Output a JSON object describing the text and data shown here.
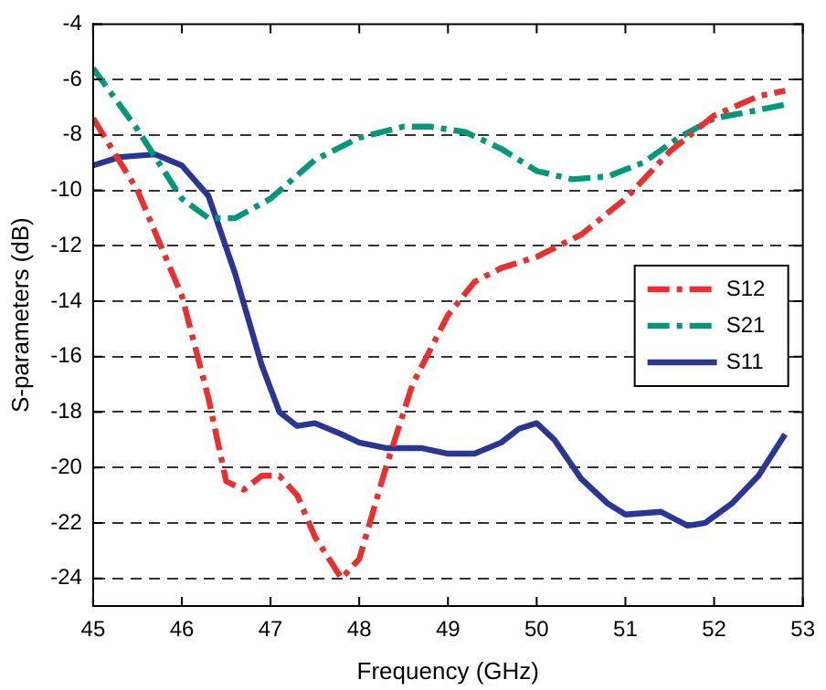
{
  "chart_data": {
    "type": "line",
    "xlabel": "Frequency (GHz)",
    "ylabel": "S-parameters (dB)",
    "xlim": [
      45,
      53
    ],
    "xticks": [
      45,
      46,
      47,
      48,
      49,
      50,
      51,
      52,
      53
    ],
    "ylim": [
      -25,
      -4
    ],
    "yticks": [
      -24,
      -22,
      -20,
      -18,
      -16,
      -14,
      -12,
      -10,
      -8,
      -6,
      -4
    ],
    "grid": "y",
    "legend": "right",
    "marker": "none",
    "series": [
      {
        "name": "S12",
        "color": "#e8302f",
        "line_style": "dashed",
        "x": [
          45,
          45.5,
          46,
          46.3,
          46.5,
          46.7,
          46.9,
          47.1,
          47.3,
          47.5,
          47.8,
          48,
          48.3,
          48.6,
          49,
          49.3,
          49.6,
          50,
          50.5,
          51,
          51.5,
          52,
          52.5,
          52.8
        ],
        "values": [
          -7.4,
          -10,
          -13.8,
          -17.5,
          -20.5,
          -20.8,
          -20.3,
          -20.3,
          -21,
          -22.5,
          -24,
          -23.3,
          -20,
          -17,
          -14.5,
          -13.3,
          -12.8,
          -12.4,
          -11.6,
          -10.3,
          -8.6,
          -7.3,
          -6.6,
          -6.4
        ]
      },
      {
        "name": "S21",
        "color": "#05977a",
        "line_style": "dashed",
        "x": [
          45,
          45.5,
          46,
          46.3,
          46.6,
          47,
          47.5,
          48,
          48.5,
          48.8,
          49.2,
          49.6,
          50,
          50.4,
          50.8,
          51.2,
          51.6,
          52,
          52.5,
          52.8
        ],
        "values": [
          -5.6,
          -7.8,
          -10.3,
          -11,
          -11,
          -10.3,
          -8.9,
          -8.1,
          -7.7,
          -7.7,
          -7.9,
          -8.5,
          -9.3,
          -9.6,
          -9.5,
          -9,
          -8.1,
          -7.4,
          -7.1,
          -6.9
        ]
      },
      {
        "name": "S11",
        "color": "#2b3592",
        "line_style": "solid",
        "x": [
          45,
          45.3,
          45.7,
          46,
          46.3,
          46.6,
          46.9,
          47.1,
          47.3,
          47.5,
          47.8,
          48,
          48.3,
          48.7,
          49,
          49.3,
          49.6,
          49.8,
          50,
          50.2,
          50.5,
          50.8,
          51,
          51.4,
          51.7,
          51.9,
          52.2,
          52.5,
          52.8
        ],
        "values": [
          -9.1,
          -8.8,
          -8.7,
          -9.1,
          -10.2,
          -13,
          -16.3,
          -18,
          -18.5,
          -18.4,
          -18.8,
          -19.1,
          -19.3,
          -19.3,
          -19.5,
          -19.5,
          -19.1,
          -18.6,
          -18.4,
          -19,
          -20.4,
          -21.3,
          -21.7,
          -21.6,
          -22.1,
          -22,
          -21.3,
          -20.3,
          -18.8
        ]
      }
    ]
  }
}
